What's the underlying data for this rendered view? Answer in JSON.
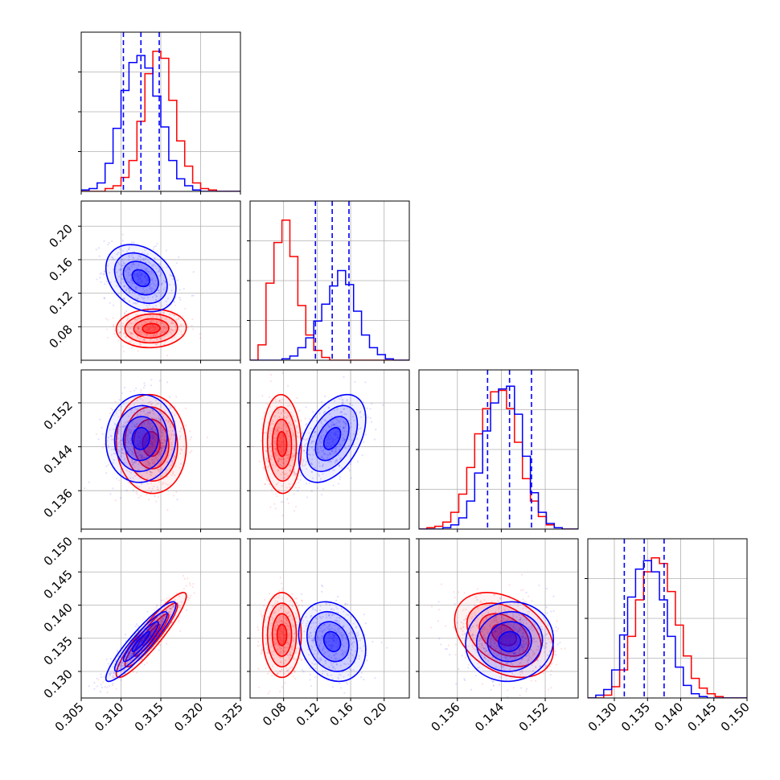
{
  "colors": {
    "model_a": "#ff0000",
    "model_b": "#0000ff",
    "quantile_line": "#0000ff"
  },
  "chart_data": {
    "type": "corner",
    "grid": true,
    "legend": "none",
    "parameters": [
      {
        "range": [
          0.305,
          0.325
        ],
        "ticks": [
          0.305,
          0.31,
          0.315,
          0.32,
          0.325
        ],
        "tick_labels": [
          "0.305",
          "0.310",
          "0.315",
          "0.320",
          "0.325"
        ]
      },
      {
        "range": [
          0.04,
          0.23
        ],
        "ticks": [
          0.08,
          0.12,
          0.16,
          0.2
        ],
        "tick_labels": [
          "0.08",
          "0.12",
          "0.16",
          "0.20"
        ]
      },
      {
        "range": [
          0.129,
          0.158
        ],
        "ticks": [
          0.136,
          0.144,
          0.152
        ],
        "tick_labels": [
          "0.136",
          "0.144",
          "0.152"
        ]
      },
      {
        "range": [
          0.126,
          0.15
        ],
        "ticks": [
          0.13,
          0.135,
          0.14,
          0.145,
          0.15
        ],
        "tick_labels": [
          "0.130",
          "0.135",
          "0.140",
          "0.145",
          "0.150"
        ]
      }
    ],
    "series": [
      {
        "color": "#ff0000",
        "means": [
          0.3138,
          0.078,
          0.1445,
          0.1355
        ],
        "sigmas": [
          0.0022,
          0.0115,
          0.0045,
          0.0032
        ],
        "correlations": [
          [
            0,
            1,
            0.05
          ],
          [
            0,
            2,
            -0.05
          ],
          [
            0,
            3,
            0.92
          ],
          [
            1,
            2,
            -0.05
          ],
          [
            1,
            3,
            0.0
          ],
          [
            2,
            3,
            -0.35
          ]
        ],
        "histograms": [
          {
            "bins": [
              0.305,
              0.306,
              0.307,
              0.308,
              0.309,
              0.31,
              0.311,
              0.312,
              0.313,
              0.314,
              0.315,
              0.316,
              0.317,
              0.318,
              0.319,
              0.32,
              0.321,
              0.322,
              0.323,
              0.324,
              0.325
            ],
            "counts": [
              0.0,
              0.0,
              0.0,
              0.02,
              0.04,
              0.1,
              0.22,
              0.5,
              0.84,
              1.0,
              0.95,
              0.65,
              0.36,
              0.18,
              0.06,
              0.02,
              0.01,
              0.0,
              0.0,
              0.0
            ]
          },
          {
            "bins": [
              0.04,
              0.0495,
              0.059,
              0.0685,
              0.078,
              0.0875,
              0.097,
              0.1065,
              0.116,
              0.1255,
              0.135,
              0.1445,
              0.154,
              0.1635,
              0.173,
              0.1825,
              0.192,
              0.2015,
              0.211,
              0.2205,
              0.23
            ],
            "counts": [
              0.0,
              0.11,
              0.55,
              0.84,
              1.0,
              0.74,
              0.39,
              0.18,
              0.07,
              0.02,
              0.0,
              0.0,
              0.0,
              0.0,
              0.0,
              0.0,
              0.0,
              0.0,
              0.0,
              0.0
            ]
          },
          {
            "bins": [
              0.129,
              0.13045,
              0.1319,
              0.13335,
              0.1348,
              0.13625,
              0.1377,
              0.13915,
              0.1406,
              0.14205,
              0.1435,
              0.14495,
              0.1464,
              0.14785,
              0.1493,
              0.15075,
              0.1522,
              0.15365,
              0.1551,
              0.15655,
              0.158
            ],
            "counts": [
              0.0,
              0.01,
              0.02,
              0.05,
              0.12,
              0.25,
              0.44,
              0.68,
              0.86,
              0.98,
              0.99,
              0.86,
              0.62,
              0.36,
              0.2,
              0.09,
              0.03,
              0.01,
              0.0,
              0.0
            ]
          },
          {
            "bins": [
              0.126,
              0.1272,
              0.1284,
              0.1296,
              0.1308,
              0.132,
              0.1332,
              0.1344,
              0.1356,
              0.1368,
              0.138,
              0.1392,
              0.1404,
              0.1416,
              0.1428,
              0.144,
              0.1452,
              0.1464,
              0.1476,
              0.1488,
              0.15
            ],
            "counts": [
              0.0,
              0.0,
              0.02,
              0.08,
              0.2,
              0.44,
              0.7,
              0.9,
              1.0,
              0.96,
              0.76,
              0.52,
              0.3,
              0.14,
              0.07,
              0.03,
              0.01,
              0.0,
              0.0,
              0.0
            ]
          }
        ]
      },
      {
        "color": "#0000ff",
        "means": [
          0.3125,
          0.138,
          0.1455,
          0.1345
        ],
        "sigmas": [
          0.0022,
          0.02,
          0.004,
          0.003
        ],
        "correlations": [
          [
            0,
            1,
            -0.3
          ],
          [
            0,
            2,
            0.05
          ],
          [
            0,
            3,
            0.92
          ],
          [
            1,
            2,
            0.45
          ],
          [
            1,
            3,
            -0.2
          ],
          [
            2,
            3,
            0.05
          ]
        ],
        "histograms": [
          {
            "bins": [
              0.305,
              0.306,
              0.307,
              0.308,
              0.309,
              0.31,
              0.311,
              0.312,
              0.313,
              0.314,
              0.315,
              0.316,
              0.317,
              0.318,
              0.319,
              0.32,
              0.321,
              0.322,
              0.323,
              0.324,
              0.325
            ],
            "counts": [
              0.01,
              0.02,
              0.06,
              0.2,
              0.45,
              0.72,
              0.92,
              0.97,
              0.88,
              0.68,
              0.46,
              0.22,
              0.09,
              0.04,
              0.01,
              0.0,
              0.0,
              0.0,
              0.0,
              0.0
            ]
          },
          {
            "bins": [
              0.04,
              0.0495,
              0.059,
              0.0685,
              0.078,
              0.0875,
              0.097,
              0.1065,
              0.116,
              0.1255,
              0.135,
              0.1445,
              0.154,
              0.1635,
              0.173,
              0.1825,
              0.192,
              0.2015,
              0.211,
              0.2205,
              0.23
            ],
            "counts": [
              0.0,
              0.0,
              0.0,
              0.0,
              0.01,
              0.03,
              0.09,
              0.16,
              0.28,
              0.4,
              0.53,
              0.64,
              0.54,
              0.35,
              0.18,
              0.09,
              0.04,
              0.01,
              0.0,
              0.0
            ]
          },
          {
            "bins": [
              0.129,
              0.13045,
              0.1319,
              0.13335,
              0.1348,
              0.13625,
              0.1377,
              0.13915,
              0.1406,
              0.14205,
              0.1435,
              0.14495,
              0.1464,
              0.14785,
              0.1493,
              0.15075,
              0.1522,
              0.15365,
              0.1551,
              0.15655,
              0.158
            ],
            "counts": [
              0.0,
              0.0,
              0.0,
              0.01,
              0.03,
              0.08,
              0.2,
              0.4,
              0.7,
              0.9,
              1.0,
              1.02,
              0.82,
              0.52,
              0.26,
              0.12,
              0.04,
              0.01,
              0.0,
              0.0
            ]
          },
          {
            "bins": [
              0.126,
              0.1272,
              0.1284,
              0.1296,
              0.1308,
              0.132,
              0.1332,
              0.1344,
              0.1356,
              0.1368,
              0.138,
              0.1392,
              0.1404,
              0.1416,
              0.1428,
              0.144,
              0.1452,
              0.1464,
              0.1476,
              0.1488,
              0.15
            ],
            "counts": [
              0.0,
              0.02,
              0.06,
              0.2,
              0.45,
              0.72,
              0.92,
              0.98,
              0.9,
              0.7,
              0.44,
              0.22,
              0.09,
              0.03,
              0.01,
              0.0,
              0.0,
              0.0,
              0.0,
              0.0
            ]
          }
        ]
      }
    ],
    "quantile_lines": [
      [
        0.3103,
        0.3125,
        0.3148
      ],
      [
        0.118,
        0.138,
        0.158
      ],
      [
        0.1415,
        0.1455,
        0.1495
      ],
      [
        0.1315,
        0.1345,
        0.1375
      ]
    ],
    "contour_levels_sigma": [
      0.5,
      1.0,
      1.5,
      2.0
    ]
  }
}
